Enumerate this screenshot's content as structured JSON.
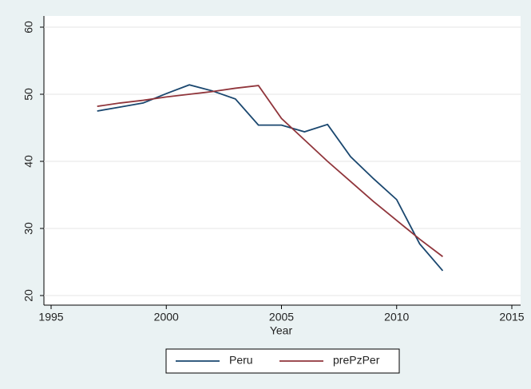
{
  "chart_data": {
    "type": "line",
    "x_label": "Year",
    "x": [
      1997,
      1998,
      1999,
      2000,
      2001,
      2002,
      2003,
      2004,
      2005,
      2006,
      2007,
      2008,
      2009,
      2010,
      2011,
      2012
    ],
    "series": [
      {
        "name": "Peru",
        "color": "#1a476f",
        "values": [
          47.5,
          48.1,
          48.7,
          50.1,
          51.4,
          50.5,
          49.3,
          45.4,
          45.4,
          44.4,
          45.5,
          40.7,
          37.4,
          34.3,
          27.7,
          23.7
        ]
      },
      {
        "name": "prePzPer",
        "color": "#90353b",
        "values": [
          48.2,
          48.7,
          49.1,
          49.6,
          50.0,
          50.4,
          50.9,
          51.3,
          46.4,
          43.2,
          40.0,
          37.0,
          34.0,
          31.2,
          28.4,
          25.8
        ]
      }
    ],
    "xlim": [
      1995,
      2015
    ],
    "xticks": [
      1995,
      2000,
      2005,
      2010,
      2015
    ],
    "ylim": [
      20,
      60
    ],
    "yticks": [
      20,
      30,
      40,
      50,
      60
    ],
    "grid": true,
    "legend": "bottom"
  }
}
